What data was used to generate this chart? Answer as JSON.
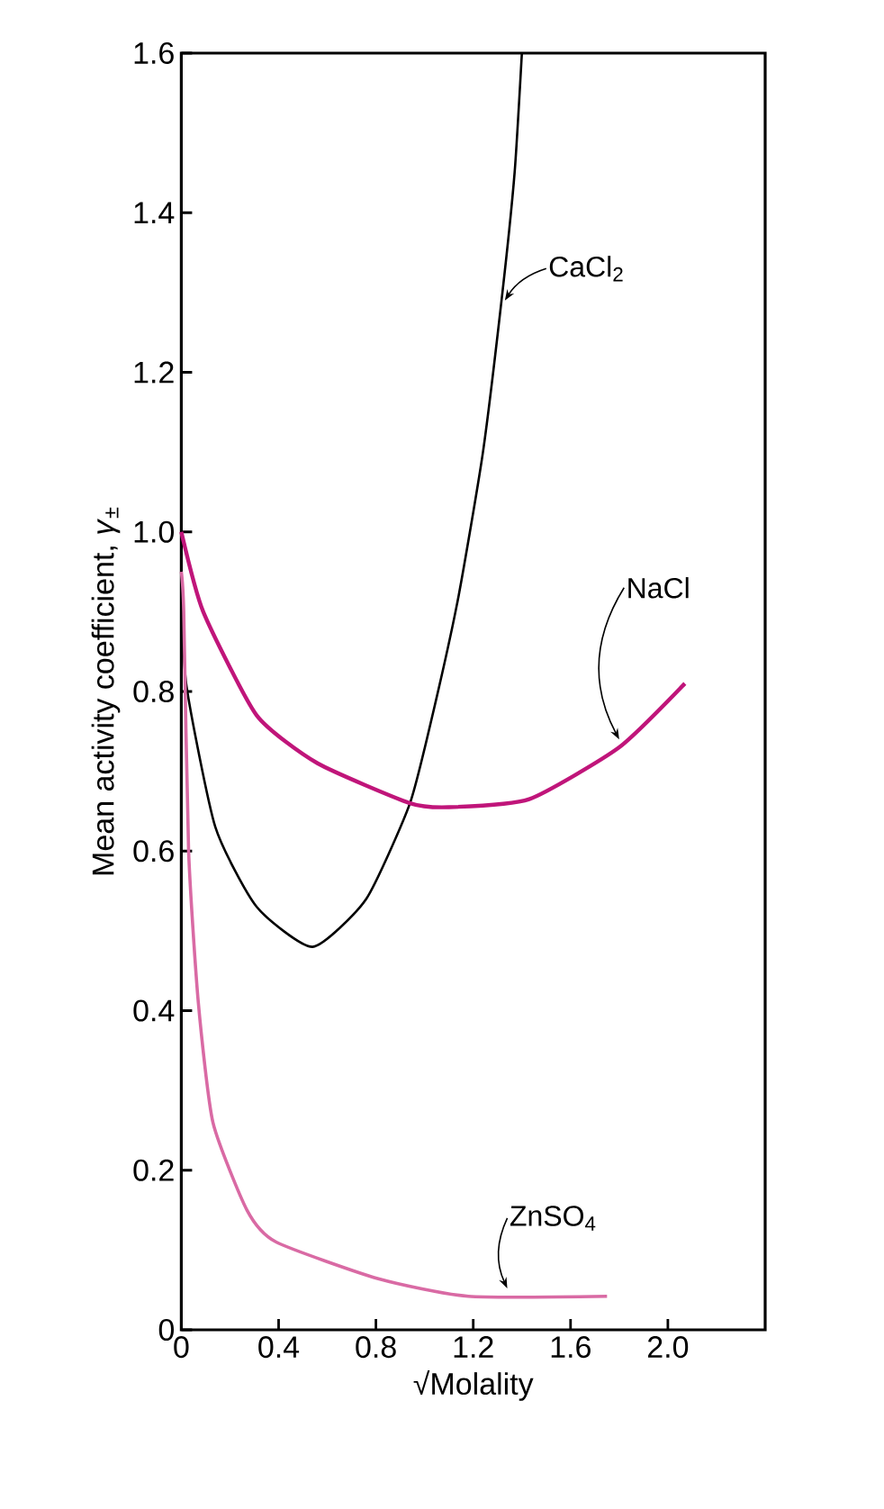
{
  "chart_data": {
    "type": "line",
    "xlabel": "√Molality",
    "ylabel": "Mean activity coefficient, *γ*$_{±}$",
    "xlim": [
      0,
      2.4
    ],
    "ylim": [
      0,
      1.6
    ],
    "xticks": [
      0,
      0.4,
      0.8,
      1.2,
      1.6,
      {
        "value": 2,
        "label": "2.0"
      }
    ],
    "yticks": [
      0,
      0.2,
      0.4,
      0.6,
      0.8,
      {
        "value": 1,
        "label": "1.0"
      },
      1.2,
      1.4,
      1.6
    ],
    "grid": false,
    "marker": "none",
    "line_style": "solid",
    "series": [
      {
        "name": "CaCl$_{2}$",
        "color": "#000000",
        "x": [
          0,
          0.02,
          0.14,
          0.31,
          0.54,
          0.76,
          0.94,
          1.04,
          1.14,
          1.24,
          1.32,
          1.37,
          1.4
        ],
        "values": [
          0.95,
          0.81,
          0.63,
          0.53,
          0.48,
          0.54,
          0.66,
          0.78,
          0.92,
          1.1,
          1.3,
          1.45,
          1.6
        ]
      },
      {
        "name": "NaCl",
        "color": "#c0157a",
        "x": [
          0,
          0.09,
          0.31,
          0.56,
          0.94,
          1.1,
          1.43,
          1.8,
          2.07
        ],
        "values": [
          1.0,
          0.9,
          0.77,
          0.71,
          0.66,
          0.655,
          0.665,
          0.73,
          0.81
        ]
      },
      {
        "name": "ZnSO$_{4}$",
        "color": "#d96aa4",
        "x": [
          0,
          0.01,
          0.03,
          0.07,
          0.13,
          0.27,
          0.39,
          0.81,
          1.18,
          1.75
        ],
        "values": [
          0.95,
          0.9,
          0.6,
          0.41,
          0.26,
          0.15,
          0.11,
          0.064,
          0.042,
          0.042
        ]
      }
    ]
  }
}
